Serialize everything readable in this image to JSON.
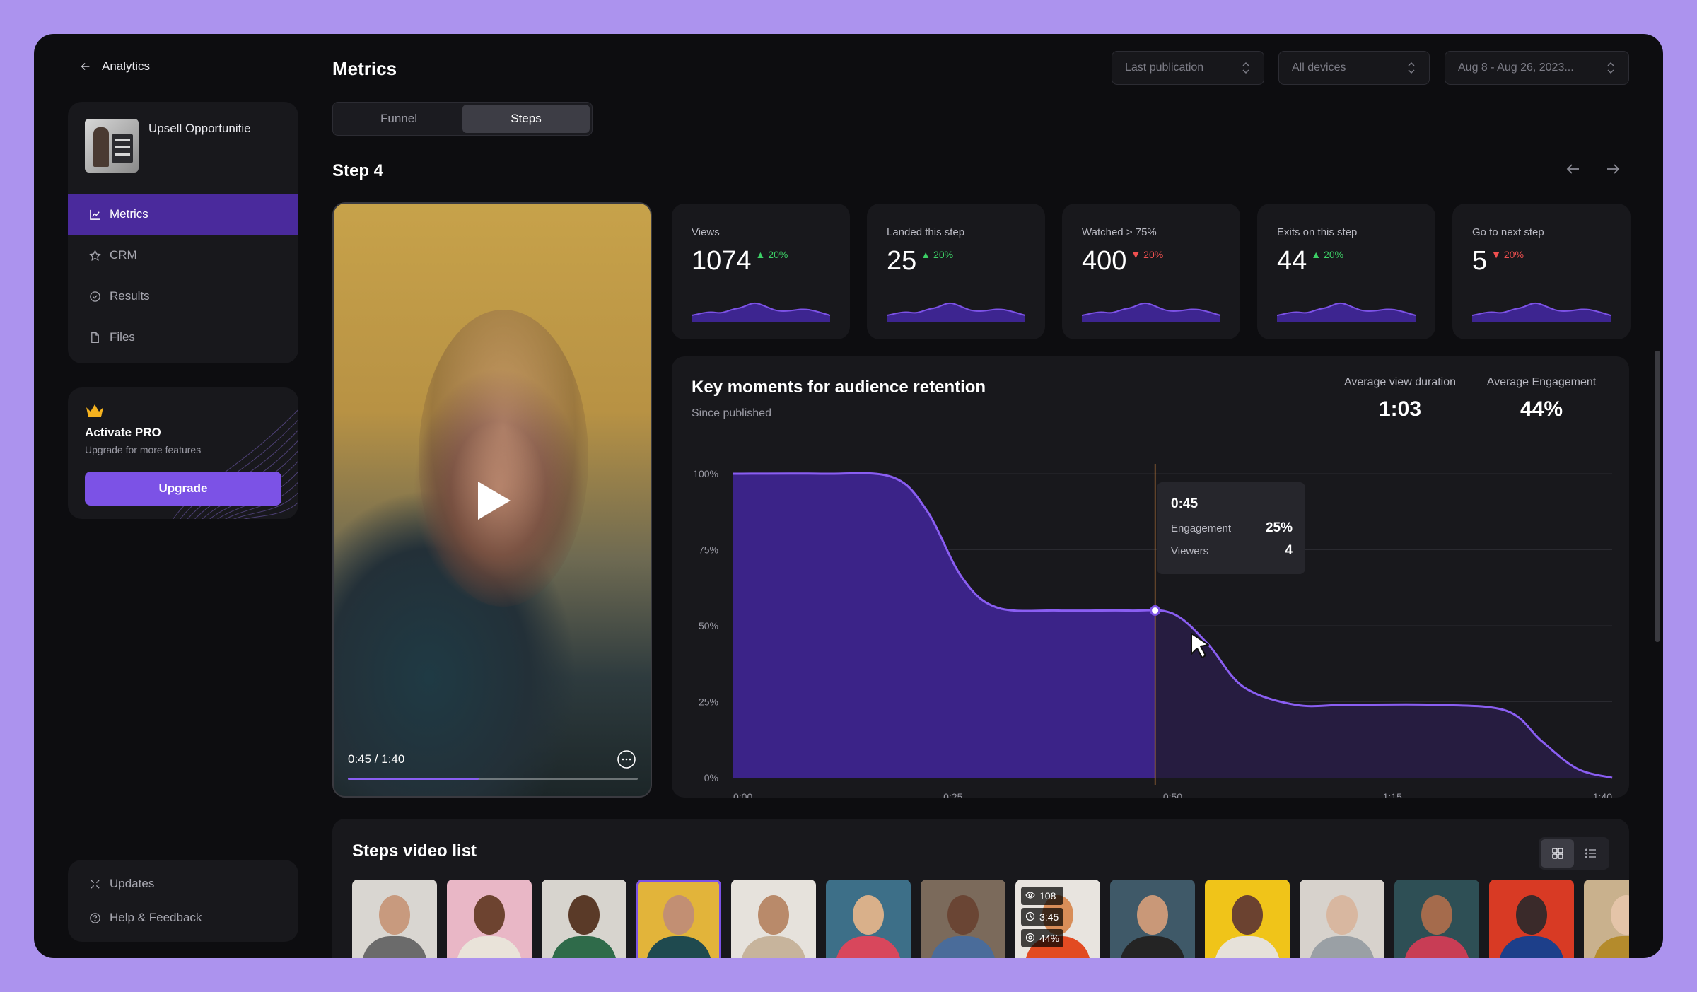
{
  "sidebar": {
    "back_label": "Analytics",
    "project_name": "Upsell Opportunitie",
    "nav": [
      {
        "label": "Metrics",
        "icon": "chart-line-icon",
        "active": true
      },
      {
        "label": "CRM",
        "icon": "star-icon",
        "active": false
      },
      {
        "label": "Results",
        "icon": "check-circle-icon",
        "active": false
      },
      {
        "label": "Files",
        "icon": "file-icon",
        "active": false
      }
    ],
    "pro": {
      "title": "Activate PRO",
      "subtitle": "Upgrade for more features",
      "button": "Upgrade"
    },
    "footer": [
      {
        "label": "Updates",
        "icon": "sparkle-icon"
      },
      {
        "label": "Help & Feedback",
        "icon": "help-circle-icon"
      }
    ]
  },
  "header": {
    "title": "Metrics",
    "filters": [
      {
        "value": "Last publication"
      },
      {
        "value": "All devices"
      },
      {
        "value": "Aug 8 - Aug 26, 2023..."
      }
    ],
    "tabs": [
      {
        "label": "Funnel",
        "active": false
      },
      {
        "label": "Steps",
        "active": true
      }
    ],
    "step_title": "Step 4"
  },
  "video": {
    "time": "0:45 / 1:40",
    "progress": 0.45
  },
  "metrics": [
    {
      "label": "Views",
      "value": "1074",
      "delta": "20%",
      "trend": "up"
    },
    {
      "label": "Landed this step",
      "value": "25",
      "delta": "20%",
      "trend": "up"
    },
    {
      "label": "Watched > 75%",
      "value": "400",
      "delta": "20%",
      "trend": "down"
    },
    {
      "label": "Exits on this step",
      "value": "44",
      "delta": "20%",
      "trend": "up"
    },
    {
      "label": "Go to next step",
      "value": "5",
      "delta": "20%",
      "trend": "down"
    }
  ],
  "retention": {
    "title": "Key moments for audience retention",
    "subtitle": "Since published",
    "kpis": [
      {
        "label": "Average view duration",
        "value": "1:03"
      },
      {
        "label": "Average Engagement",
        "value": "44%"
      }
    ],
    "tooltip": {
      "time": "0:45",
      "engagement_label": "Engagement",
      "engagement_value": "25%",
      "viewers_label": "Viewers",
      "viewers_value": "4"
    }
  },
  "chart_data": {
    "type": "area",
    "title": "Key moments for audience retention",
    "subtitle": "Since published",
    "x": [
      0,
      10,
      18,
      22,
      26,
      30,
      37,
      45,
      50,
      54,
      58,
      64,
      70,
      80,
      88,
      92,
      96,
      100
    ],
    "x_ticks": [
      "0:00",
      "0:25",
      "0:50",
      "1:15",
      "1:40"
    ],
    "x_tick_values": [
      0,
      25,
      50,
      75,
      100
    ],
    "y_ticks": [
      "100%",
      "75%",
      "50%",
      "25%",
      "0%"
    ],
    "ylim": [
      0,
      100
    ],
    "series": [
      {
        "values": [
          100,
          100,
          99,
          88,
          66,
          56,
          55,
          55,
          54,
          44,
          30,
          24,
          24,
          24,
          22,
          12,
          3,
          0
        ]
      }
    ],
    "highlight_x": 48,
    "highlight_y": 55,
    "grid": true
  },
  "steps_list": {
    "title": "Steps video list",
    "selected_index": 3,
    "overlay_stats": {
      "index": 7,
      "views": "108",
      "duration": "3:45",
      "engagement": "44%"
    },
    "thumbs": [
      {
        "bg": "#d9d6d1",
        "skin": "#c89a7e",
        "cloth": "#6b6b6b"
      },
      {
        "bg": "#e9b7c6",
        "skin": "#6d4330",
        "cloth": "#e9e3d9"
      },
      {
        "bg": "#d7d4ce",
        "skin": "#5a3a28",
        "cloth": "#2f6b4a"
      },
      {
        "bg": "#e2b43a",
        "skin": "#c28f73",
        "cloth": "#1f4a4f"
      },
      {
        "bg": "#e6e2dc",
        "skin": "#b98a6a",
        "cloth": "#c7b49c"
      },
      {
        "bg": "#3d6f88",
        "skin": "#d9b08a",
        "cloth": "#d8475c"
      },
      {
        "bg": "#7b6a5b",
        "skin": "#6a4534",
        "cloth": "#4a6c9a"
      },
      {
        "bg": "#e8e4df",
        "skin": "#d88d58",
        "cloth": "#e24b22"
      },
      {
        "bg": "#3f5968",
        "skin": "#c99878",
        "cloth": "#242424"
      },
      {
        "bg": "#f0c419",
        "skin": "#6b4230",
        "cloth": "#e6e1d9"
      },
      {
        "bg": "#d7d2cc",
        "skin": "#d8b7a0",
        "cloth": "#9aa0a5"
      },
      {
        "bg": "#2e4f55",
        "skin": "#a56b4c",
        "cloth": "#c83d55"
      },
      {
        "bg": "#d83a24",
        "skin": "#3a2a2a",
        "cloth": "#1d3f8a"
      },
      {
        "bg": "#c9b18d",
        "skin": "#e4c4a8",
        "cloth": "#b48b2c"
      }
    ]
  },
  "colors": {
    "accent": "#7c52e6",
    "nav_active": "#4a2a9c",
    "up": "#3ccf65",
    "down": "#ef4f4f"
  }
}
